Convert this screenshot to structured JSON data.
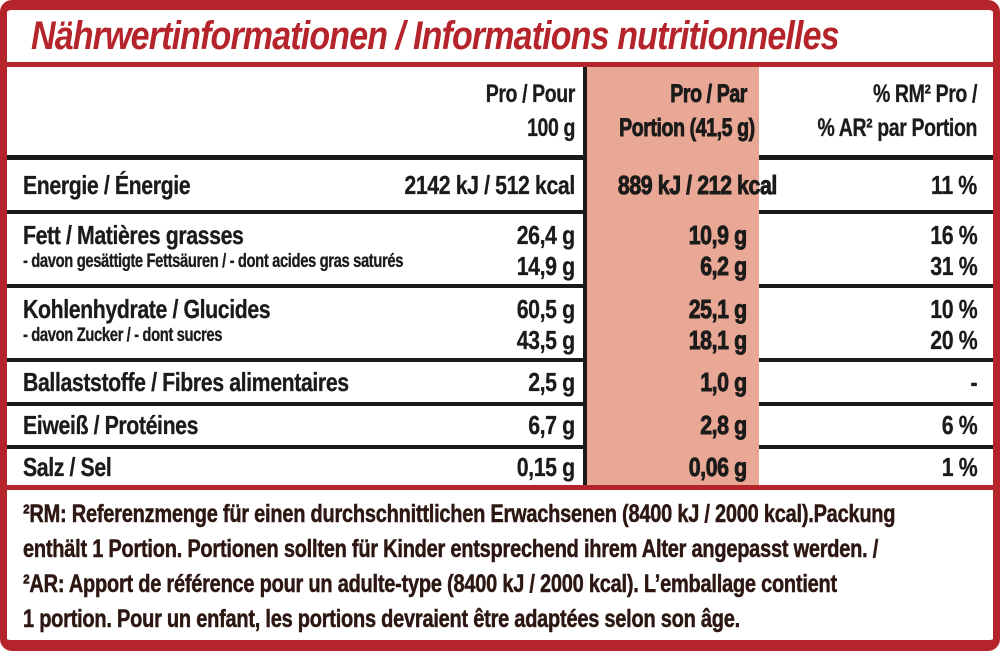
{
  "colors": {
    "brand_red": "#b5242b",
    "highlight": "#e9a795",
    "ink": "#1b1b19",
    "footnote_ink": "#2d1712"
  },
  "title": "Nährwertinformationen / Informations nutritionnelles",
  "table": {
    "header": {
      "per_100g_line1": "Pro / Pour",
      "per_100g_line2": "100 g",
      "per_portion_line1": "Pro / Par",
      "per_portion_line2": "Portion (41,5 g)",
      "pct_rm_line1": "% RM² Pro /",
      "pct_rm_line2": "% AR² par Portion"
    },
    "rows": [
      {
        "label": "Energie / Énergie",
        "per_100g": "2142 kJ / 512 kcal",
        "per_portion": "889 kJ / 212 kcal",
        "pct_rm": "11 %"
      },
      {
        "label": "Fett / Matières grasses",
        "per_100g": "26,4 g",
        "per_portion": "10,9 g",
        "pct_rm": "16 %"
      },
      {
        "label": "- davon gesättigte Fettsäuren / - dont acides gras saturés",
        "per_100g": "14,9 g",
        "per_portion": "6,2 g",
        "pct_rm": "31 %"
      },
      {
        "label": "Kohlenhydrate / Glucides",
        "per_100g": "60,5 g",
        "per_portion": "25,1 g",
        "pct_rm": "10 %"
      },
      {
        "label": "- davon Zucker / - dont sucres",
        "per_100g": "43,5 g",
        "per_portion": "18,1 g",
        "pct_rm": "20 %"
      },
      {
        "label": "Ballaststoffe / Fibres alimentaires",
        "per_100g": "2,5 g",
        "per_portion": "1,0 g",
        "pct_rm": "-"
      },
      {
        "label": "Eiweiß / Protéines",
        "per_100g": "6,7 g",
        "per_portion": "2,8 g",
        "pct_rm": "6 %"
      },
      {
        "label": "Salz / Sel",
        "per_100g": "0,15 g",
        "per_portion": "0,06 g",
        "pct_rm": "1 %"
      }
    ]
  },
  "footnote": {
    "lines": [
      "²RM: Referenzmenge für einen durchschnittlichen Erwachsenen (8400 kJ / 2000 kcal).Packung",
      "enthält 1 Portion. Portionen sollten für Kinder entsprechend ihrem Alter angepasst werden. /",
      "²AR: Apport de référence pour un adulte-type (8400 kJ / 2000 kcal). L’emballage contient",
      "1 portion. Pour un enfant, les portions devraient être adaptées selon son âge."
    ]
  }
}
